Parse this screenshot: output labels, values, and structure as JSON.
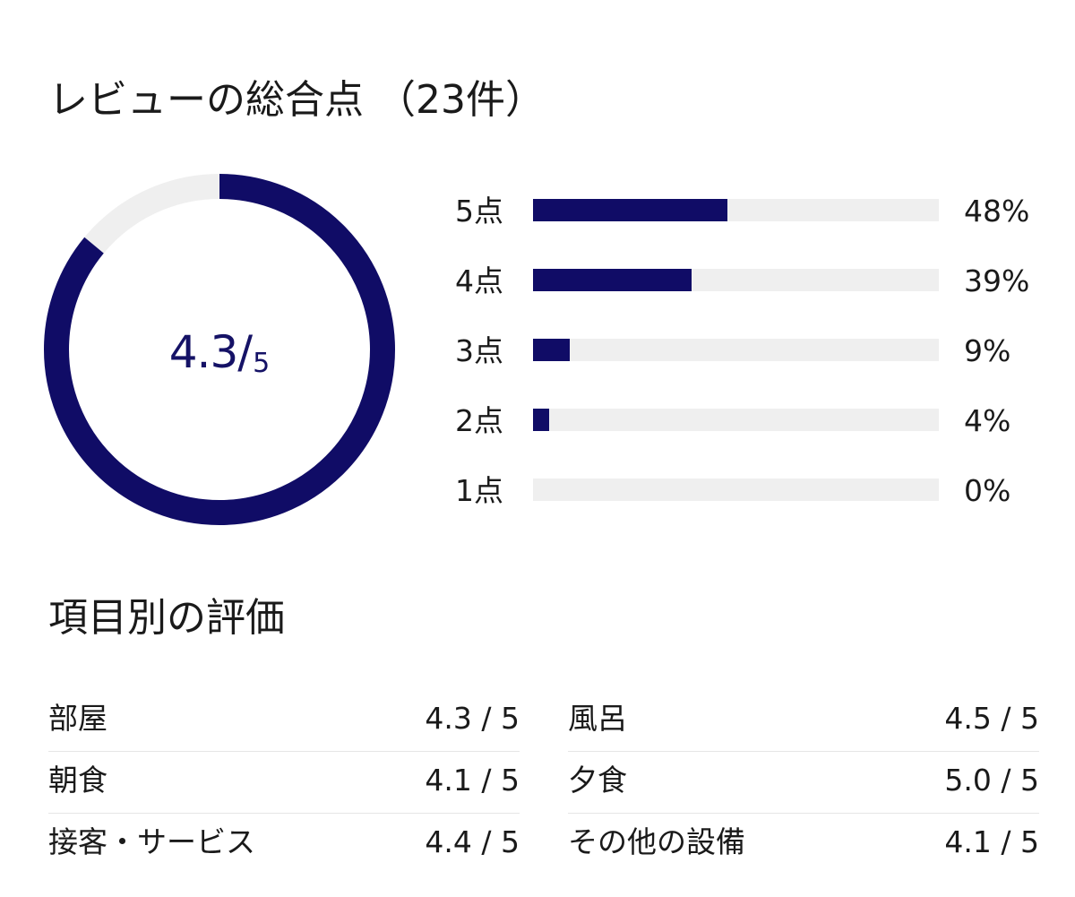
{
  "overall": {
    "title": "レビューの総合点 （23件）",
    "score_label": "4.3",
    "score_separator": "/",
    "score_max_label": "5",
    "score_value": 4.3,
    "score_max": 5,
    "ring_color": "#100c66",
    "ring_bg_color": "#efefef"
  },
  "distribution": [
    {
      "label": "5点",
      "percent_label": "48%",
      "percent": 48
    },
    {
      "label": "4点",
      "percent_label": "39%",
      "percent": 39
    },
    {
      "label": "3点",
      "percent_label": "9%",
      "percent": 9
    },
    {
      "label": "2点",
      "percent_label": "4%",
      "percent": 4
    },
    {
      "label": "1点",
      "percent_label": "0%",
      "percent": 0
    }
  ],
  "items": {
    "title": "項目別の評価",
    "left": [
      {
        "name": "部屋",
        "score": "4.3 / 5"
      },
      {
        "name": "朝食",
        "score": "4.1 / 5"
      },
      {
        "name": "接客・サービス",
        "score": "4.4 / 5"
      }
    ],
    "right": [
      {
        "name": "風呂",
        "score": "4.5 / 5"
      },
      {
        "name": "夕食",
        "score": "5.0 / 5"
      },
      {
        "name": "その他の設備",
        "score": "4.1 / 5"
      }
    ]
  }
}
